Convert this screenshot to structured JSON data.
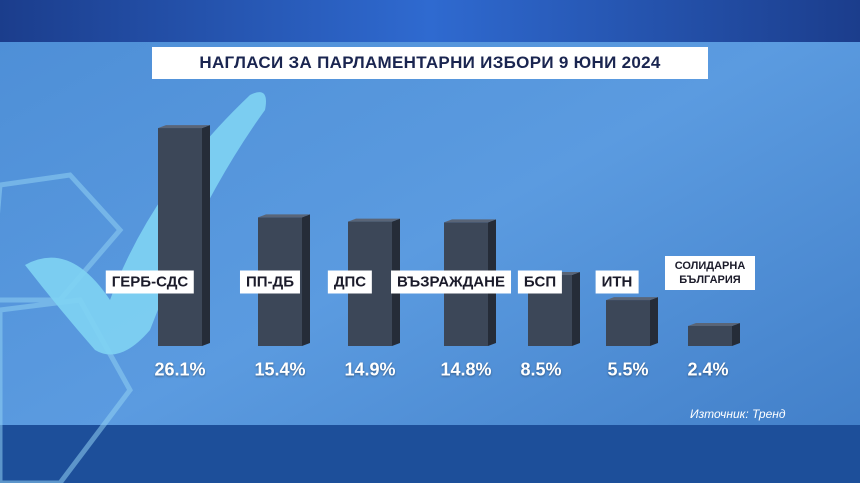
{
  "chart_data": {
    "type": "bar",
    "title": "НАГЛАСИ ЗА ПАРЛАМЕНТАРНИ ИЗБОРИ 9 ЮНИ 2024",
    "categories": [
      "ГЕРБ-СДС",
      "ПП-ДБ",
      "ДПС",
      "ВЪЗРАЖДАНЕ",
      "БСП",
      "ИТН",
      "СОЛИДАРНА БЪЛГАРИЯ"
    ],
    "values": [
      26.1,
      15.4,
      14.9,
      14.8,
      8.5,
      5.5,
      2.4
    ],
    "value_labels": [
      "26.1%",
      "15.4%",
      "14.9%",
      "14.8%",
      "8.5%",
      "5.5%",
      "2.4%"
    ],
    "color": "#3c4758",
    "source": "Източник: Тренд"
  }
}
